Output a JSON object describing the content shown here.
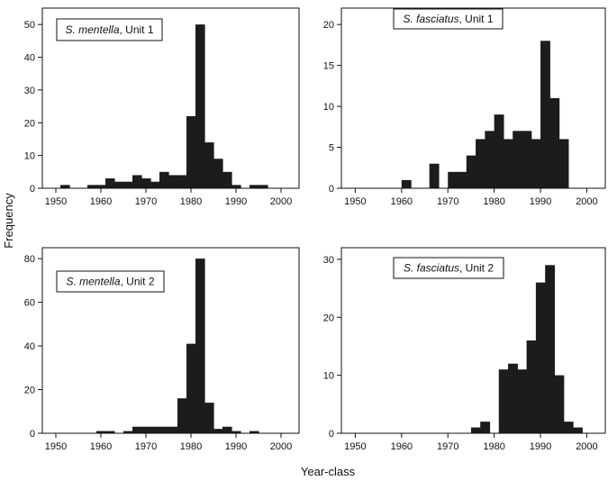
{
  "figure": {
    "ylabel": "Frequency",
    "xlabel": "Year-class"
  },
  "chart_data": [
    {
      "type": "bar",
      "label_species": "S. mentella",
      "label_unit": ", Unit 1",
      "xlim": [
        1947,
        2004
      ],
      "ylim": [
        0,
        55
      ],
      "xticks": [
        1950,
        1960,
        1970,
        1980,
        1990,
        2000
      ],
      "yticks": [
        0,
        10,
        20,
        30,
        40,
        50
      ],
      "bin_starts": [
        1951,
        1952,
        1953,
        1954,
        1955,
        1956,
        1957,
        1958,
        1959,
        1960,
        1961,
        1962,
        1963,
        1964,
        1965,
        1966,
        1967,
        1968,
        1969,
        1970,
        1971,
        1972,
        1973,
        1974,
        1975,
        1976,
        1977,
        1978,
        1979,
        1980,
        1981,
        1982,
        1983,
        1984,
        1985,
        1986,
        1987,
        1988,
        1989,
        1990,
        1991,
        1992,
        1993,
        1994,
        1995,
        1996
      ],
      "values": [
        1,
        1,
        0,
        0,
        0,
        0,
        1,
        1,
        1,
        1,
        3,
        3,
        2,
        2,
        2,
        2,
        4,
        4,
        3,
        3,
        2,
        2,
        5,
        5,
        4,
        4,
        4,
        4,
        22,
        22,
        50,
        50,
        14,
        14,
        9,
        9,
        5,
        5,
        1,
        1,
        0,
        0,
        1,
        1,
        1,
        1
      ]
    },
    {
      "type": "bar",
      "label_species": "S. fasciatus",
      "label_unit": ", Unit 1",
      "xlim": [
        1947,
        2004
      ],
      "ylim": [
        0,
        22
      ],
      "xticks": [
        1950,
        1960,
        1970,
        1980,
        1990,
        2000
      ],
      "yticks": [
        0,
        5,
        10,
        15,
        20
      ],
      "bin_starts": [
        1960,
        1961,
        1966,
        1967,
        1970,
        1971,
        1972,
        1973,
        1974,
        1975,
        1976,
        1977,
        1978,
        1979,
        1980,
        1981,
        1982,
        1983,
        1984,
        1985,
        1986,
        1987,
        1988,
        1989,
        1990,
        1991,
        1992,
        1993,
        1994,
        1995
      ],
      "values": [
        1,
        1,
        3,
        3,
        2,
        2,
        2,
        2,
        4,
        4,
        6,
        6,
        7,
        7,
        9,
        9,
        6,
        6,
        7,
        7,
        7,
        7,
        6,
        6,
        18,
        18,
        11,
        11,
        6,
        6
      ]
    },
    {
      "type": "bar",
      "label_species": "S. mentella",
      "label_unit": ", Unit 2",
      "xlim": [
        1947,
        2004
      ],
      "ylim": [
        0,
        85
      ],
      "xticks": [
        1950,
        1960,
        1970,
        1980,
        1990,
        2000
      ],
      "yticks": [
        0,
        20,
        40,
        60,
        80
      ],
      "bin_starts": [
        1959,
        1960,
        1961,
        1962,
        1963,
        1964,
        1965,
        1966,
        1967,
        1968,
        1969,
        1970,
        1971,
        1972,
        1973,
        1974,
        1975,
        1976,
        1977,
        1978,
        1979,
        1980,
        1981,
        1982,
        1983,
        1984,
        1985,
        1986,
        1987,
        1988,
        1989,
        1990,
        1991,
        1992,
        1993,
        1994
      ],
      "values": [
        1,
        1,
        1,
        1,
        0,
        0,
        1,
        1,
        3,
        3,
        3,
        3,
        3,
        3,
        3,
        3,
        3,
        3,
        16,
        16,
        41,
        41,
        80,
        80,
        14,
        14,
        2,
        2,
        3,
        3,
        1,
        1,
        0,
        0,
        1,
        1
      ]
    },
    {
      "type": "bar",
      "label_species": "S. fasciatus",
      "label_unit": ", Unit 2",
      "xlim": [
        1947,
        2004
      ],
      "ylim": [
        0,
        32
      ],
      "xticks": [
        1950,
        1960,
        1970,
        1980,
        1990,
        2000
      ],
      "yticks": [
        0,
        10,
        20,
        30
      ],
      "bin_starts": [
        1975,
        1976,
        1977,
        1978,
        1981,
        1982,
        1983,
        1984,
        1985,
        1986,
        1987,
        1988,
        1989,
        1990,
        1991,
        1992,
        1993,
        1994,
        1995,
        1996,
        1997,
        1998
      ],
      "values": [
        1,
        1,
        2,
        2,
        11,
        11,
        12,
        12,
        11,
        11,
        16,
        16,
        26,
        26,
        29,
        29,
        10,
        10,
        2,
        2,
        1,
        1
      ]
    }
  ],
  "colors": {
    "bar": "#1c1c1c",
    "axis": "#111111"
  }
}
